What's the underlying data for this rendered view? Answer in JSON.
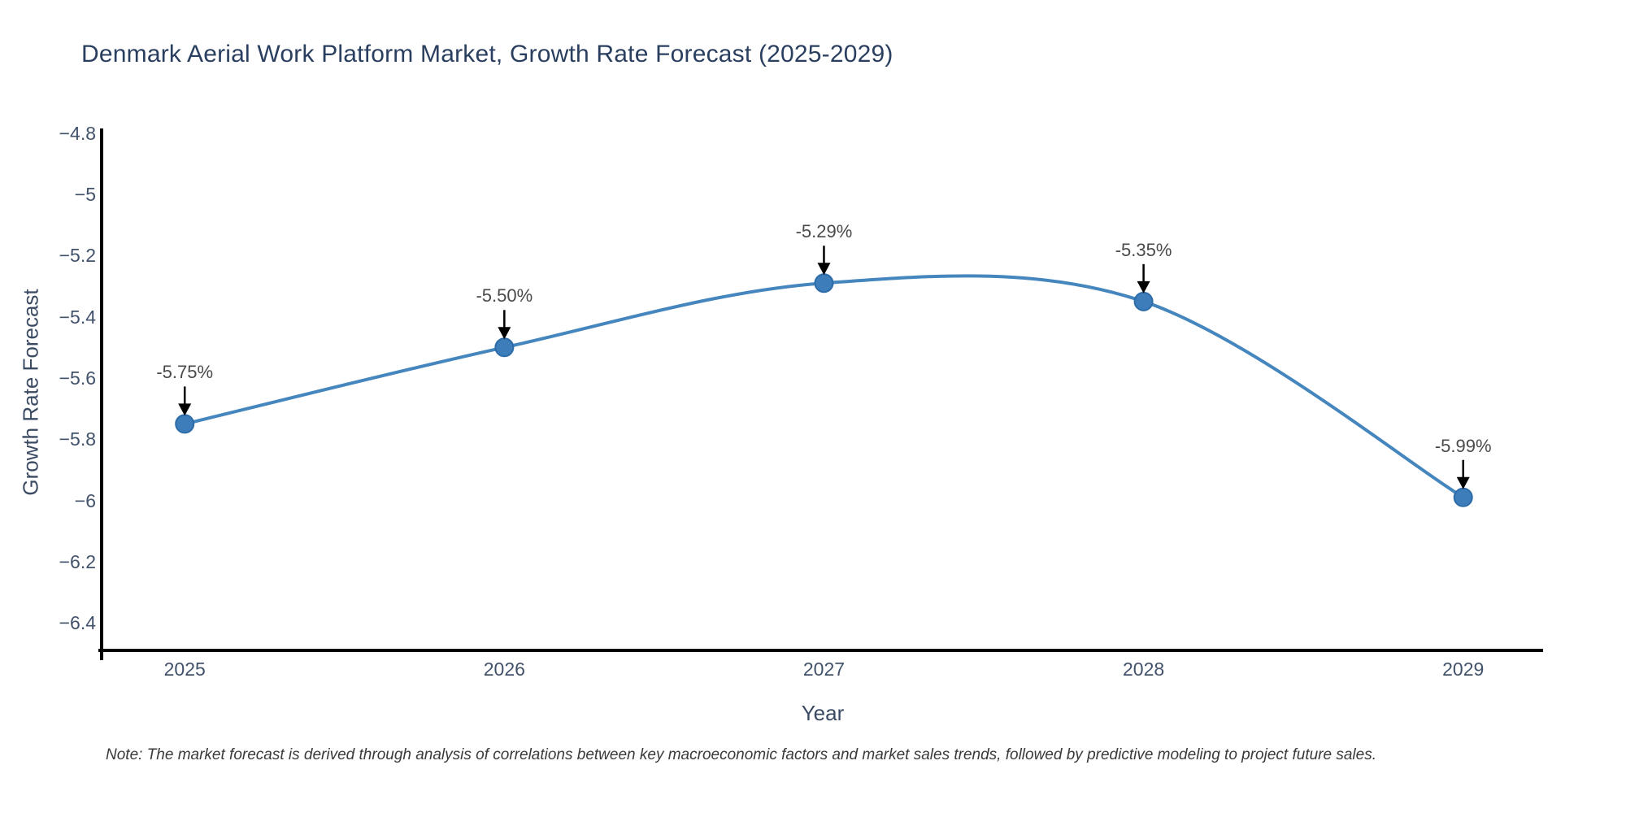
{
  "title": "Denmark Aerial Work Platform Market, Growth Rate Forecast (2025-2029)",
  "note": "Note: The market forecast is derived through analysis of correlations between key macroeconomic factors and market sales trends, followed by predictive modeling to project future sales.",
  "chart_data": {
    "type": "line",
    "title": "Denmark Aerial Work Platform Market, Growth Rate Forecast (2025-2029)",
    "xlabel": "Year",
    "ylabel": "Growth Rate Forecast",
    "categories": [
      2025,
      2026,
      2027,
      2028,
      2029
    ],
    "series": [
      {
        "name": "Growth Rate Forecast",
        "values": [
          -5.75,
          -5.5,
          -5.29,
          -5.35,
          -5.99
        ]
      }
    ],
    "point_labels": [
      "-5.75%",
      "-5.50%",
      "-5.29%",
      "-5.35%",
      "-5.99%"
    ],
    "yticks": [
      -4.8,
      -5.0,
      -5.2,
      -5.4,
      -5.6,
      -5.8,
      -6.0,
      -6.2,
      -6.4
    ],
    "ytick_labels": [
      "−4.8",
      "−5",
      "−5.2",
      "−5.4",
      "−5.6",
      "−5.8",
      "−6",
      "−6.2",
      "−6.4"
    ],
    "xtick_labels": [
      "2025",
      "2026",
      "2027",
      "2028",
      "2029"
    ],
    "ylim": [
      -6.49,
      -4.79
    ],
    "xlim": [
      2024.74,
      2029.25
    ],
    "line_shape": "spline",
    "grid": false,
    "legend": "none",
    "annotations": "black down-arrows from each data label to its marker",
    "colors": {
      "line": "#4486bd",
      "marker": "#3d7dba",
      "marker_edge": "#2d6ca8",
      "arrow": "#000000",
      "axis": "#000000",
      "title_text": "#2a3f5f",
      "tick_text": "#42526b",
      "annotation_text": "#4a4a4a",
      "note_text": "#3a3a3a",
      "background": "#ffffff"
    }
  }
}
